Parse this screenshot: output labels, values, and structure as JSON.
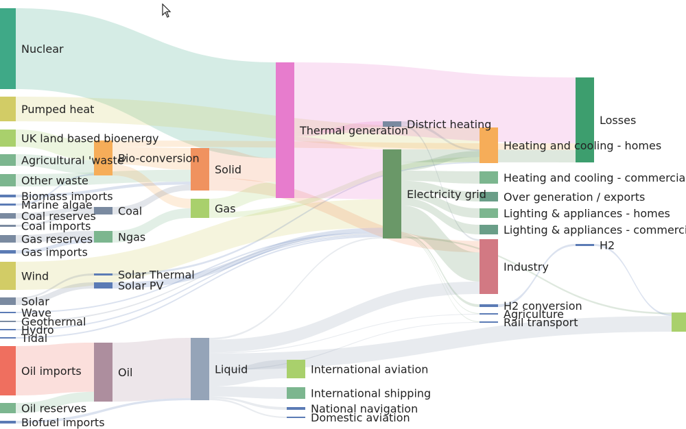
{
  "chart_data": {
    "type": "sankey",
    "nodes": [
      {
        "id": "nuclear",
        "label": "Nuclear",
        "color": "#3fa987"
      },
      {
        "id": "pumped-heat",
        "label": "Pumped heat",
        "color": "#d2cc66"
      },
      {
        "id": "uk-bioenergy",
        "label": "UK land based bioenergy",
        "color": "#a9d06c"
      },
      {
        "id": "agri-waste",
        "label": "Agricultural 'waste'",
        "color": "#7cb68f"
      },
      {
        "id": "other-waste",
        "label": "Other waste",
        "color": "#7cb68f"
      },
      {
        "id": "biomass-imports",
        "label": "Biomass imports",
        "color": "#5b7bb5"
      },
      {
        "id": "marine-algae",
        "label": "Marine algae",
        "color": "#5b7bb5"
      },
      {
        "id": "coal-reserves",
        "label": "Coal reserves",
        "color": "#7a8aa0"
      },
      {
        "id": "coal-imports",
        "label": "Coal imports",
        "color": "#7a8aa0"
      },
      {
        "id": "gas-reserves",
        "label": "Gas reserves",
        "color": "#7a8aa0"
      },
      {
        "id": "gas-imports",
        "label": "Gas imports",
        "color": "#5b7bb5"
      },
      {
        "id": "wind",
        "label": "Wind",
        "color": "#d2cc66"
      },
      {
        "id": "solar",
        "label": "Solar",
        "color": "#7a8aa0"
      },
      {
        "id": "wave",
        "label": "Wave",
        "color": "#5b7bb5"
      },
      {
        "id": "geothermal",
        "label": "Geothermal",
        "color": "#7a8aa0"
      },
      {
        "id": "hydro",
        "label": "Hydro",
        "color": "#5b7bb5"
      },
      {
        "id": "tidal",
        "label": "Tidal",
        "color": "#5b7bb5"
      },
      {
        "id": "oil-imports",
        "label": "Oil imports",
        "color": "#ef6f5f"
      },
      {
        "id": "oil-reserves",
        "label": "Oil reserves",
        "color": "#7cb68f"
      },
      {
        "id": "biofuel-imports",
        "label": "Biofuel imports",
        "color": "#5b7bb5"
      },
      {
        "id": "bio-conversion",
        "label": "Bio-conversion",
        "color": "#f6ad59"
      },
      {
        "id": "coal",
        "label": "Coal",
        "color": "#7a8aa0"
      },
      {
        "id": "ngas",
        "label": "Ngas",
        "color": "#7cb68f"
      },
      {
        "id": "solar-thermal",
        "label": "Solar Thermal",
        "color": "#5b7bb5"
      },
      {
        "id": "solar-pv",
        "label": "Solar PV",
        "color": "#5b7bb5"
      },
      {
        "id": "oil",
        "label": "Oil",
        "color": "#ad8e9e"
      },
      {
        "id": "solid",
        "label": "Solid",
        "color": "#f0925f"
      },
      {
        "id": "gas",
        "label": "Gas",
        "color": "#a9d06c"
      },
      {
        "id": "liquid",
        "label": "Liquid",
        "color": "#95a4b8"
      },
      {
        "id": "thermal-generation",
        "label": "Thermal generation",
        "color": "#e77ccd"
      },
      {
        "id": "intl-aviation",
        "label": "International aviation",
        "color": "#a9d06c"
      },
      {
        "id": "intl-shipping",
        "label": "International shipping",
        "color": "#7cb68f"
      },
      {
        "id": "national-navigation",
        "label": "National navigation",
        "color": "#5b7bb5"
      },
      {
        "id": "domestic-aviation",
        "label": "Domestic aviation",
        "color": "#5b7bb5"
      },
      {
        "id": "district-heating",
        "label": "District heating",
        "color": "#7a8aa0"
      },
      {
        "id": "electricity-grid",
        "label": "Electricity grid",
        "color": "#6a9868"
      },
      {
        "id": "heating-homes",
        "label": "Heating and cooling - homes",
        "color": "#f6ad59"
      },
      {
        "id": "heating-commercial",
        "label": "Heating and cooling - commercial",
        "color": "#7cb68f"
      },
      {
        "id": "over-generation",
        "label": "Over generation / exports",
        "color": "#6a9e88"
      },
      {
        "id": "lighting-homes",
        "label": "Lighting & appliances - homes",
        "color": "#7cb68f"
      },
      {
        "id": "lighting-commercial",
        "label": "Lighting & appliances - commercial",
        "color": "#6a9e88"
      },
      {
        "id": "industry",
        "label": "Industry",
        "color": "#d27983"
      },
      {
        "id": "h2-conversion",
        "label": "H2 conversion",
        "color": "#5b7bb5"
      },
      {
        "id": "agriculture",
        "label": "Agriculture",
        "color": "#5b7bb5"
      },
      {
        "id": "rail-transport",
        "label": "Rail transport",
        "color": "#5b7bb5"
      },
      {
        "id": "losses",
        "label": "Losses",
        "color": "#3d9e6e"
      },
      {
        "id": "h2",
        "label": "H2",
        "color": "#5b7bb5"
      },
      {
        "id": "road-transport",
        "label": "",
        "color": "#a9d06c"
      }
    ],
    "links": [
      {
        "source": "nuclear",
        "target": "thermal-generation",
        "value": 120,
        "color": "#3fa987"
      },
      {
        "source": "pumped-heat",
        "target": "heating-homes",
        "value": 36,
        "color": "#d2cc66"
      },
      {
        "source": "uk-bioenergy",
        "target": "bio-conversion",
        "value": 25,
        "color": "#a9d06c"
      },
      {
        "source": "agri-waste",
        "target": "bio-conversion",
        "value": 17,
        "color": "#7cb68f"
      },
      {
        "source": "other-waste",
        "target": "solid",
        "value": 12,
        "color": "#7cb68f"
      },
      {
        "source": "biomass-imports",
        "target": "solid",
        "value": 3,
        "color": "#5b7bb5"
      },
      {
        "source": "marine-algae",
        "target": "bio-conversion",
        "value": 2,
        "color": "#5b7bb5"
      },
      {
        "source": "coal-reserves",
        "target": "coal",
        "value": 3,
        "color": "#7a8aa0"
      },
      {
        "source": "coal-imports",
        "target": "coal",
        "value": 3,
        "color": "#7a8aa0"
      },
      {
        "source": "gas-reserves",
        "target": "ngas",
        "value": 9,
        "color": "#7a8aa0"
      },
      {
        "source": "gas-imports",
        "target": "ngas",
        "value": 5,
        "color": "#5b7bb5"
      },
      {
        "source": "wind",
        "target": "electricity-grid",
        "value": 40,
        "color": "#d2cc66"
      },
      {
        "source": "solar",
        "target": "solar-pv",
        "value": 6,
        "color": "#7a8aa0"
      },
      {
        "source": "solar",
        "target": "solar-thermal",
        "value": 2,
        "color": "#7a8aa0"
      },
      {
        "source": "wave",
        "target": "electricity-grid",
        "value": 2,
        "color": "#5b7bb5"
      },
      {
        "source": "geothermal",
        "target": "electricity-grid",
        "value": 1,
        "color": "#7a8aa0"
      },
      {
        "source": "hydro",
        "target": "electricity-grid",
        "value": 2,
        "color": "#5b7bb5"
      },
      {
        "source": "tidal",
        "target": "electricity-grid",
        "value": 2,
        "color": "#5b7bb5"
      },
      {
        "source": "oil-imports",
        "target": "oil",
        "value": 70,
        "color": "#ef6f5f"
      },
      {
        "source": "oil-reserves",
        "target": "oil",
        "value": 14,
        "color": "#7cb68f"
      },
      {
        "source": "biofuel-imports",
        "target": "liquid",
        "value": 3,
        "color": "#5b7bb5"
      },
      {
        "source": "bio-conversion",
        "target": "solid",
        "value": 22,
        "color": "#f6ad59"
      },
      {
        "source": "bio-conversion",
        "target": "gas",
        "value": 14,
        "color": "#f6ad59"
      },
      {
        "source": "bio-conversion",
        "target": "losses",
        "value": 8,
        "color": "#f6ad59"
      },
      {
        "source": "coal",
        "target": "solid",
        "value": 6,
        "color": "#7a8aa0"
      },
      {
        "source": "ngas",
        "target": "gas",
        "value": 14,
        "color": "#7cb68f"
      },
      {
        "source": "solar-thermal",
        "target": "heating-homes",
        "value": 2,
        "color": "#5b7bb5"
      },
      {
        "source": "solar-pv",
        "target": "electricity-grid",
        "value": 6,
        "color": "#5b7bb5"
      },
      {
        "source": "oil",
        "target": "liquid",
        "value": 84,
        "color": "#ad8e9e"
      },
      {
        "source": "solid",
        "target": "thermal-generation",
        "value": 30,
        "color": "#f0925f"
      },
      {
        "source": "solid",
        "target": "industry",
        "value": 13,
        "color": "#f0925f"
      },
      {
        "source": "gas",
        "target": "thermal-generation",
        "value": 20,
        "color": "#a9d06c"
      },
      {
        "source": "gas",
        "target": "heating-homes",
        "value": 8,
        "color": "#a9d06c"
      },
      {
        "source": "liquid",
        "target": "intl-aviation",
        "value": 17,
        "color": "#95a4b8"
      },
      {
        "source": "liquid",
        "target": "intl-shipping",
        "value": 11,
        "color": "#95a4b8"
      },
      {
        "source": "liquid",
        "target": "national-navigation",
        "value": 2,
        "color": "#95a4b8"
      },
      {
        "source": "liquid",
        "target": "domestic-aviation",
        "value": 2,
        "color": "#95a4b8"
      },
      {
        "source": "liquid",
        "target": "road-transport",
        "value": 18,
        "color": "#95a4b8"
      },
      {
        "source": "liquid",
        "target": "industry",
        "value": 14,
        "color": "#95a4b8"
      },
      {
        "source": "liquid",
        "target": "electricity-grid",
        "value": 2,
        "color": "#95a4b8"
      },
      {
        "source": "liquid",
        "target": "agriculture",
        "value": 1,
        "color": "#95a4b8"
      },
      {
        "source": "liquid",
        "target": "rail-transport",
        "value": 1,
        "color": "#95a4b8"
      },
      {
        "source": "thermal-generation",
        "target": "losses",
        "value": 80,
        "color": "#e77ccd"
      },
      {
        "source": "thermal-generation",
        "target": "district-heating",
        "value": 5,
        "color": "#e77ccd"
      },
      {
        "source": "thermal-generation",
        "target": "electricity-grid",
        "value": 70,
        "color": "#e77ccd"
      },
      {
        "source": "district-heating",
        "target": "heating-homes",
        "value": 3,
        "color": "#7a8aa0"
      },
      {
        "source": "district-heating",
        "target": "industry",
        "value": 2,
        "color": "#7a8aa0"
      },
      {
        "source": "electricity-grid",
        "target": "heating-homes",
        "value": 10,
        "color": "#6a9868"
      },
      {
        "source": "electricity-grid",
        "target": "heating-commercial",
        "value": 12,
        "color": "#6a9868"
      },
      {
        "source": "electricity-grid",
        "target": "over-generation",
        "value": 10,
        "color": "#6a9868"
      },
      {
        "source": "electricity-grid",
        "target": "lighting-homes",
        "value": 10,
        "color": "#6a9868"
      },
      {
        "source": "electricity-grid",
        "target": "lighting-commercial",
        "value": 9,
        "color": "#6a9868"
      },
      {
        "source": "electricity-grid",
        "target": "industry",
        "value": 33,
        "color": "#6a9868"
      },
      {
        "source": "electricity-grid",
        "target": "h2-conversion",
        "value": 2,
        "color": "#6a9868"
      },
      {
        "source": "electricity-grid",
        "target": "agriculture",
        "value": 1,
        "color": "#6a9868"
      },
      {
        "source": "electricity-grid",
        "target": "rail-transport",
        "value": 1,
        "color": "#6a9868"
      },
      {
        "source": "electricity-grid",
        "target": "road-transport",
        "value": 2,
        "color": "#6a9868"
      },
      {
        "source": "electricity-grid",
        "target": "losses",
        "value": 15,
        "color": "#6a9868"
      },
      {
        "source": "h2-conversion",
        "target": "h2",
        "value": 2,
        "color": "#5b7bb5"
      },
      {
        "source": "h2",
        "target": "road-transport",
        "value": 2,
        "color": "#5b7bb5"
      }
    ]
  }
}
